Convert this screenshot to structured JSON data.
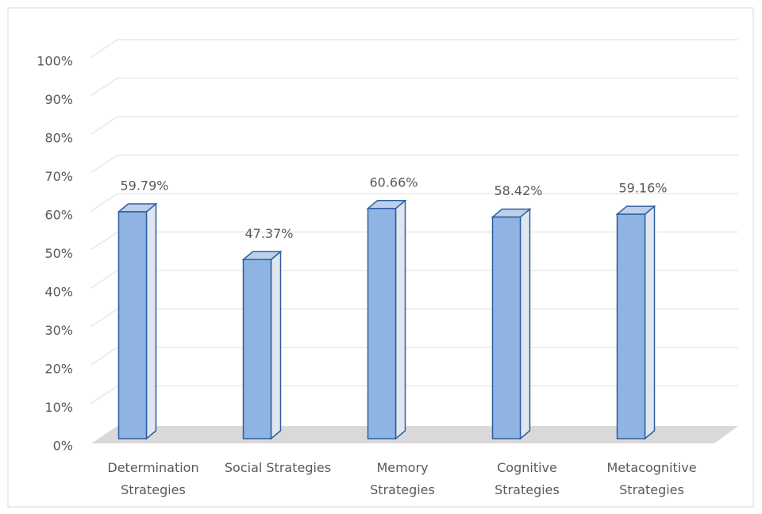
{
  "chart_data": {
    "type": "bar3d",
    "categories": [
      "Determination Strategies",
      "Social Strategies",
      "Memory Strategies",
      "Cognitive Strategies",
      "Metacognitive Strategies"
    ],
    "values": [
      59.79,
      47.37,
      60.66,
      58.42,
      59.16
    ],
    "value_labels": [
      "59.79%",
      "47.37%",
      "60.66%",
      "58.42%",
      "59.16%"
    ],
    "color": "#8fb4e3",
    "ylim": [
      0,
      100
    ],
    "yticks": [
      {
        "value": 0,
        "label": "0%"
      },
      {
        "value": 10,
        "label": "10%"
      },
      {
        "value": 20,
        "label": "20%"
      },
      {
        "value": 30,
        "label": "30%"
      },
      {
        "value": 40,
        "label": "40%"
      },
      {
        "value": 50,
        "label": "50%"
      },
      {
        "value": 60,
        "label": "60%"
      },
      {
        "value": 70,
        "label": "70%"
      },
      {
        "value": 80,
        "label": "80%"
      },
      {
        "value": 90,
        "label": "90%"
      },
      {
        "value": 100,
        "label": "100%"
      }
    ],
    "grid": true
  }
}
